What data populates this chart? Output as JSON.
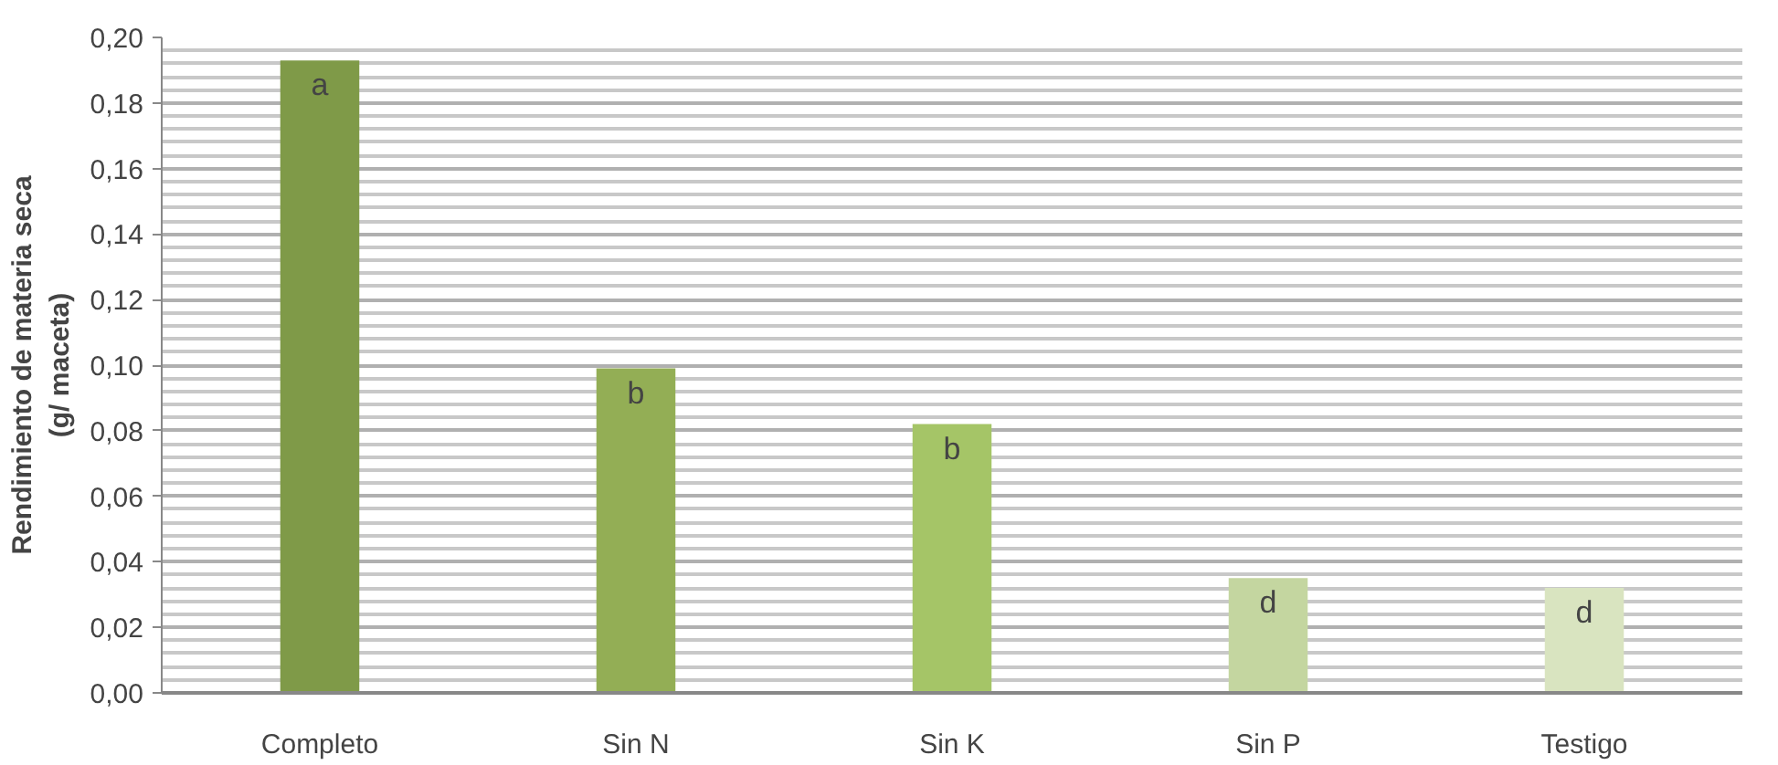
{
  "chart_data": {
    "type": "bar",
    "ylabel": "Rendimiento de materia seca\n(g/ maceta)",
    "categories": [
      "Completo",
      "Sin N",
      "Sin K",
      "Sin P",
      "Testigo"
    ],
    "values": [
      0.193,
      0.099,
      0.082,
      0.035,
      0.032
    ],
    "colors": [
      "#7f9a48",
      "#93ae55",
      "#a5c567",
      "#c4d6a0",
      "#d9e4c0"
    ],
    "ylim": [
      0,
      0.2
    ],
    "yticks": [
      {
        "value": 0,
        "label": "0,00"
      },
      {
        "value": 0.02,
        "label": "0,02"
      },
      {
        "value": 0.04,
        "label": "0,04"
      },
      {
        "value": 0.06,
        "label": "0,06"
      },
      {
        "value": 0.08,
        "label": "0,08"
      },
      {
        "value": 0.1,
        "label": "0,10"
      },
      {
        "value": 0.12,
        "label": "0,12"
      },
      {
        "value": 0.14,
        "label": "0,14"
      },
      {
        "value": 0.16,
        "label": "0,16"
      },
      {
        "value": 0.18,
        "label": "0,18"
      },
      {
        "value": 0.2,
        "label": "0,20"
      }
    ],
    "grid": "y",
    "annotations": [
      {
        "text": "a",
        "x": "Completo",
        "y": 0.193
      },
      {
        "text": "b",
        "x": "Sin N",
        "y": 0.099
      },
      {
        "text": "b",
        "x": "Sin K",
        "y": 0.082
      },
      {
        "text": "d",
        "x": "Sin P",
        "y": 0.035
      },
      {
        "text": "d",
        "x": "Testigo",
        "y": 0.032
      }
    ]
  }
}
